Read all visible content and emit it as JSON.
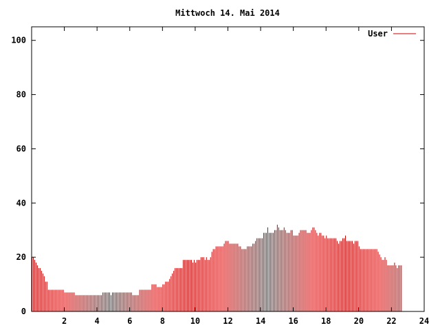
{
  "chart_data": {
    "type": "bar",
    "title": "Mittwoch 14. Mai 2014",
    "xlabel": "",
    "ylabel": "",
    "xlim": [
      0,
      24
    ],
    "ylim": [
      0,
      105
    ],
    "x_ticks": [
      "2",
      "4",
      "6",
      "8",
      "10",
      "12",
      "14",
      "16",
      "18",
      "20",
      "22",
      "24"
    ],
    "y_ticks": [
      "0",
      "20",
      "40",
      "60",
      "80",
      "100"
    ],
    "grid": false,
    "legend": {
      "placement": "top-right",
      "entries": [
        "User"
      ]
    },
    "sample_interval_minutes": 5,
    "series": [
      {
        "name": "User",
        "color": "#cc0000",
        "values": [
          20,
          20,
          19,
          18,
          17,
          16,
          16,
          15,
          14,
          13,
          11,
          11,
          8,
          8,
          8,
          8,
          8,
          8,
          8,
          8,
          8,
          8,
          8,
          8,
          7,
          7,
          7,
          7,
          7,
          7,
          7,
          7,
          6,
          6,
          6,
          6,
          6,
          6,
          6,
          6,
          6,
          6,
          6,
          6,
          6,
          6,
          6,
          6,
          6,
          6,
          6,
          6,
          7,
          7,
          7,
          7,
          7,
          7,
          6,
          7,
          7,
          7,
          7,
          7,
          7,
          7,
          7,
          7,
          7,
          7,
          7,
          7,
          7,
          7,
          6,
          6,
          6,
          6,
          6,
          8,
          8,
          8,
          8,
          8,
          8,
          8,
          8,
          8,
          10,
          10,
          10,
          10,
          9,
          9,
          9,
          9,
          10,
          10,
          11,
          11,
          11,
          12,
          13,
          14,
          15,
          16,
          16,
          16,
          16,
          16,
          16,
          19,
          19,
          19,
          19,
          19,
          19,
          19,
          18,
          19,
          18,
          19,
          19,
          19,
          20,
          20,
          20,
          19,
          20,
          19,
          19,
          20,
          22,
          23,
          23,
          24,
          24,
          24,
          24,
          24,
          24,
          25,
          26,
          26,
          26,
          25,
          25,
          25,
          25,
          25,
          25,
          25,
          24,
          24,
          23,
          23,
          23,
          23,
          24,
          24,
          24,
          24,
          25,
          25,
          26,
          27,
          27,
          27,
          27,
          27,
          29,
          29,
          29,
          31,
          29,
          29,
          29,
          29,
          30,
          30,
          32,
          31,
          30,
          30,
          30,
          31,
          30,
          29,
          29,
          29,
          30,
          30,
          28,
          28,
          28,
          28,
          29,
          30,
          30,
          30,
          30,
          30,
          29,
          29,
          29,
          30,
          31,
          31,
          30,
          29,
          28,
          29,
          29,
          28,
          28,
          27,
          28,
          27,
          27,
          27,
          27,
          27,
          27,
          27,
          26,
          25,
          26,
          26,
          27,
          27,
          28,
          26,
          26,
          26,
          26,
          26,
          25,
          26,
          26,
          26,
          24,
          23,
          23,
          23,
          23,
          23,
          23,
          23,
          23,
          23,
          23,
          23,
          23,
          23,
          22,
          21,
          20,
          19,
          19,
          20,
          19,
          17,
          17,
          17,
          17,
          17,
          18,
          17,
          16,
          17,
          17,
          17
        ]
      }
    ]
  }
}
